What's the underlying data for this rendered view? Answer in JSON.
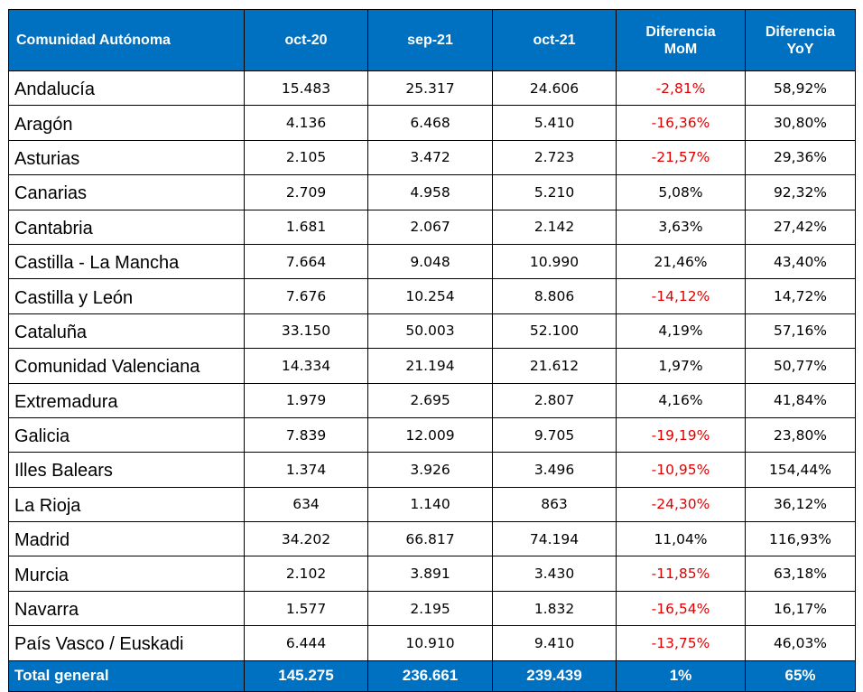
{
  "table": {
    "header": [
      "Comunidad Autónoma",
      "oct-20",
      "sep-21",
      "oct-21",
      "Diferencia MoM",
      "Diferencia YoY"
    ],
    "rows": [
      [
        "Andalucía",
        "15.483",
        "25.317",
        "24.606",
        "-2,81%",
        "58,92%"
      ],
      [
        "Aragón",
        "4.136",
        "6.468",
        "5.410",
        "-16,36%",
        "30,80%"
      ],
      [
        "Asturias",
        "2.105",
        "3.472",
        "2.723",
        "-21,57%",
        "29,36%"
      ],
      [
        "Canarias",
        "2.709",
        "4.958",
        "5.210",
        "5,08%",
        "92,32%"
      ],
      [
        "Cantabria",
        "1.681",
        "2.067",
        "2.142",
        "3,63%",
        "27,42%"
      ],
      [
        "Castilla - La Mancha",
        "7.664",
        "9.048",
        "10.990",
        "21,46%",
        "43,40%"
      ],
      [
        "Castilla y León",
        "7.676",
        "10.254",
        "8.806",
        "-14,12%",
        "14,72%"
      ],
      [
        "Cataluña",
        "33.150",
        "50.003",
        "52.100",
        "4,19%",
        "57,16%"
      ],
      [
        "Comunidad Valenciana",
        "14.334",
        "21.194",
        "21.612",
        "1,97%",
        "50,77%"
      ],
      [
        "Extremadura",
        "1.979",
        "2.695",
        "2.807",
        "4,16%",
        "41,84%"
      ],
      [
        "Galicia",
        "7.839",
        "12.009",
        "9.705",
        "-19,19%",
        "23,80%"
      ],
      [
        "Illes Balears",
        "1.374",
        "3.926",
        "3.496",
        "-10,95%",
        "154,44%"
      ],
      [
        "La Rioja",
        "634",
        "1.140",
        "863",
        "-24,30%",
        "36,12%"
      ],
      [
        "Madrid",
        "34.202",
        "66.817",
        "74.194",
        "11,04%",
        "116,93%"
      ],
      [
        "Murcia",
        "2.102",
        "3.891",
        "3.430",
        "-11,85%",
        "63,18%"
      ],
      [
        "Navarra",
        "1.577",
        "2.195",
        "1.832",
        "-16,54%",
        "16,17%"
      ],
      [
        "País Vasco / Euskadi",
        "6.444",
        "10.910",
        "9.410",
        "-13,75%",
        "46,03%"
      ]
    ],
    "total": [
      "Total general",
      "145.275",
      "236.661",
      "239.439",
      "1%",
      "65%"
    ]
  }
}
